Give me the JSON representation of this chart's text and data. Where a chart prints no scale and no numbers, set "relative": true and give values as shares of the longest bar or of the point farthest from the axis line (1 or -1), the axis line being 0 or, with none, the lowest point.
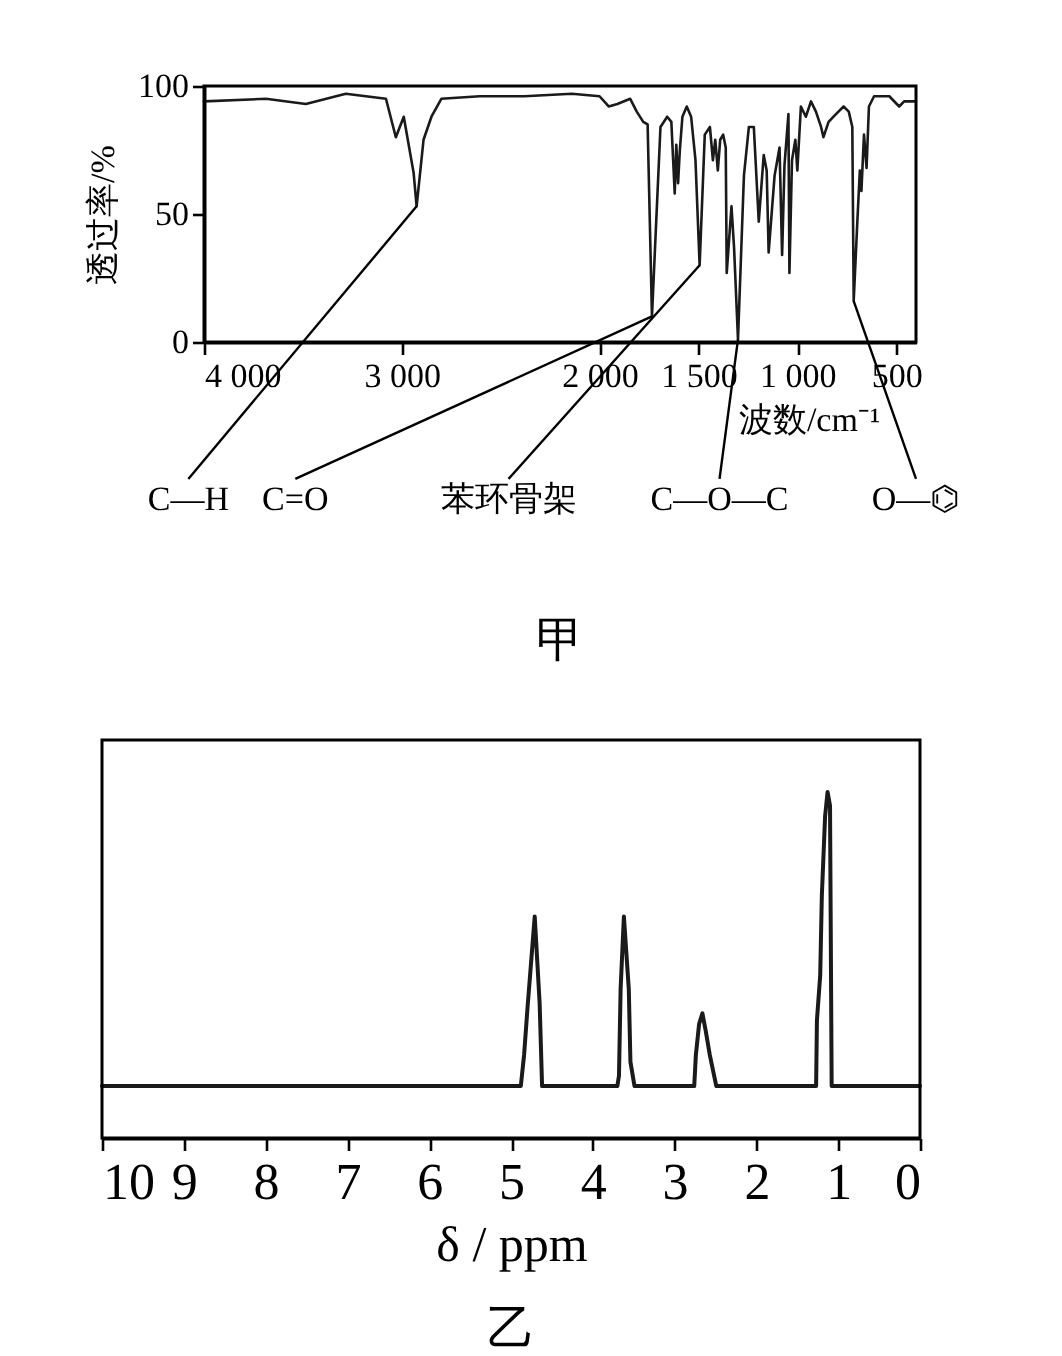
{
  "chart_data": [
    {
      "type": "line",
      "xlabel": "波数/cm⁻¹",
      "ylabel": "透过率/%",
      "xlim": [
        4000,
        400
      ],
      "xticks": [
        {
          "value": 4000,
          "label": "4 000"
        },
        {
          "value": 3000,
          "label": "3 000"
        },
        {
          "value": 2000,
          "label": "2 000"
        },
        {
          "value": 1500,
          "label": "1 500"
        },
        {
          "value": 1000,
          "label": "1 000"
        },
        500
      ],
      "ylim": [
        0,
        100
      ],
      "yticks": [
        0,
        50,
        100
      ],
      "line_style": "solid",
      "marker": "none",
      "x": [
        4000,
        3687,
        3485,
        3283,
        3080,
        3030,
        2990,
        2940,
        2925,
        2890,
        2850,
        2800,
        2606,
        2380,
        2140,
        2000,
        1954,
        1910,
        1845,
        1812,
        1779,
        1757,
        1735,
        1713,
        1692,
        1658,
        1637,
        1620,
        1612,
        1603,
        1594,
        1581,
        1559,
        1537,
        1515,
        1494,
        1468,
        1442,
        1427,
        1415,
        1402,
        1390,
        1375,
        1362,
        1357,
        1333,
        1320,
        1300,
        1270,
        1245,
        1220,
        1195,
        1170,
        1155,
        1145,
        1115,
        1090,
        1077,
        1065,
        1045,
        1040,
        1027,
        1010,
        1000,
        982,
        957,
        931,
        906,
        880,
        868,
        842,
        817,
        792,
        766,
        740,
        722,
        715,
        696,
        684,
        676,
        663,
        650,
        638,
        612,
        535,
        485,
        460,
        400
      ],
      "series": [
        {
          "color": "#1a1a1a",
          "values": [
            94,
            95,
            93,
            97,
            95,
            80,
            88,
            66,
            53,
            79,
            88,
            95,
            96,
            96,
            97,
            96,
            92,
            93,
            95,
            90,
            86,
            85,
            10,
            48,
            84,
            88,
            86,
            58,
            77,
            62,
            75,
            88,
            92,
            88,
            71,
            30,
            81,
            84,
            71,
            79,
            67,
            79,
            81,
            76,
            27,
            53,
            37,
            1,
            65,
            84,
            84,
            47,
            73,
            67,
            35,
            65,
            76,
            34,
            69,
            89,
            27,
            71,
            79,
            67,
            92,
            88,
            94,
            90,
            84,
            80,
            86,
            88,
            90,
            92,
            90,
            84,
            16,
            48,
            67,
            59,
            81,
            68,
            92,
            96,
            96,
            92,
            94,
            94
          ]
        }
      ],
      "annotations": [
        {
          "text": "C—H",
          "x": 2925,
          "y": 53
        },
        {
          "text": "C=O",
          "x": 1735,
          "y": 10
        },
        {
          "text": "苯环骨架",
          "x": 1494,
          "y": 30
        },
        {
          "text": "C—O—C",
          "x": 1300,
          "y": 1
        },
        {
          "text": "O—⌬",
          "x": 715,
          "y": 16
        },
        "甲"
      ]
    },
    {
      "type": "line",
      "relative": true,
      "xlabel": "δ / ppm",
      "xlim": [
        10,
        0
      ],
      "xticks": [
        10,
        9,
        8,
        7,
        6,
        5,
        4,
        3,
        2,
        1,
        0
      ],
      "line_style": "solid",
      "marker": "none",
      "x": [
        10,
        4.88,
        4.84,
        4.8,
        4.71,
        4.65,
        4.62,
        3.7,
        3.68,
        3.66,
        3.62,
        3.56,
        3.54,
        3.49,
        2.76,
        2.74,
        2.7,
        2.66,
        2.62,
        2.57,
        2.49,
        1.27,
        1.26,
        1.22,
        1.2,
        1.16,
        1.13,
        1.1,
        1.08,
        0
      ],
      "series": [
        {
          "color": "#1a1a1a",
          "values": [
            0.15,
            0.15,
            0.24,
            0.37,
            0.64,
            0.39,
            0.15,
            0.15,
            0.18,
            0.43,
            0.64,
            0.43,
            0.22,
            0.15,
            0.15,
            0.24,
            0.33,
            0.36,
            0.31,
            0.24,
            0.15,
            0.15,
            0.34,
            0.47,
            0.7,
            0.93,
            1.0,
            0.96,
            0.15,
            0.15
          ]
        }
      ],
      "annotations": [
        "乙"
      ]
    }
  ]
}
